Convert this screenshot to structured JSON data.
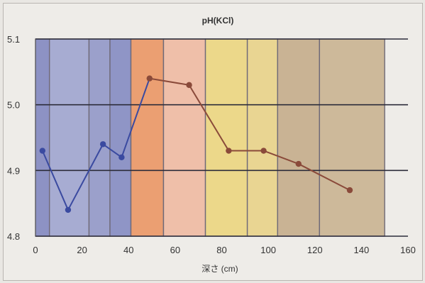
{
  "chart_data": {
    "type": "line",
    "title": "pH(KCl)",
    "xlabel": "深さ (cm)",
    "ylabel": "",
    "xlim": [
      0,
      160
    ],
    "ylim": [
      4.8,
      5.1
    ],
    "xticks": [
      0,
      20,
      40,
      60,
      80,
      100,
      120,
      140,
      160
    ],
    "xtick_labels": [
      "0",
      "20",
      "40",
      "60",
      "80",
      "100",
      "120",
      "140",
      "160"
    ],
    "yticks": [
      4.8,
      4.9,
      5.0,
      5.1
    ],
    "ytick_labels": [
      "4.8",
      "4.9",
      "5.0",
      "5.1"
    ],
    "grid": "horizontal",
    "series": [
      {
        "x": [
          3,
          14,
          29,
          37,
          49,
          66,
          83,
          98,
          113,
          135
        ],
        "y": [
          4.93,
          4.84,
          4.94,
          4.92,
          5.04,
          5.03,
          4.93,
          4.93,
          4.91,
          4.87
        ],
        "line_color": "#3a4aa0",
        "line_color_after_x40": "#8a4a3a"
      }
    ],
    "bands": [
      {
        "from": 0,
        "to": 6,
        "color": "#8d92c4"
      },
      {
        "from": 6,
        "to": 23,
        "color": "#a7acd2"
      },
      {
        "from": 23,
        "to": 32,
        "color": "#9ba0cb"
      },
      {
        "from": 32,
        "to": 41,
        "color": "#8f95c6"
      },
      {
        "from": 41,
        "to": 55,
        "color": "#eb9f72"
      },
      {
        "from": 55,
        "to": 73,
        "color": "#efbfa9"
      },
      {
        "from": 73,
        "to": 91,
        "color": "#ecd88a"
      },
      {
        "from": 91,
        "to": 104,
        "color": "#e9d592"
      },
      {
        "from": 104,
        "to": 122,
        "color": "#c9b394"
      },
      {
        "from": 122,
        "to": 150,
        "color": "#cdb99a"
      }
    ]
  }
}
